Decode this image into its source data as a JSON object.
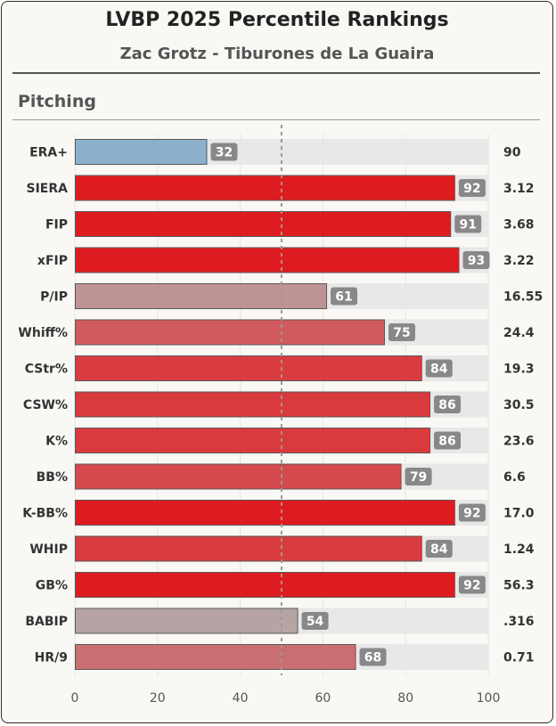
{
  "header": {
    "title": "LVBP 2025 Percentile Rankings",
    "subtitle": "Zac Grotz - Tiburones de La Guaira",
    "section": "Pitching"
  },
  "chart_data": {
    "type": "bar",
    "orientation": "horizontal",
    "title": "LVBP 2025 Percentile Rankings",
    "subtitle": "Zac Grotz - Tiburones de La Guaira",
    "section": "Pitching",
    "categories": [
      "ERA+",
      "SIERA",
      "FIP",
      "xFIP",
      "P/IP",
      "Whiff%",
      "CStr%",
      "CSW%",
      "K%",
      "BB%",
      "K-BB%",
      "WHIP",
      "GB%",
      "BABIP",
      "HR/9"
    ],
    "values": [
      32,
      92,
      91,
      93,
      61,
      75,
      84,
      86,
      86,
      79,
      92,
      84,
      92,
      54,
      68
    ],
    "stat_values": [
      "90",
      "3.12",
      "3.68",
      "3.22",
      "16.55",
      "24.4",
      "19.3",
      "30.5",
      "23.6",
      "6.6",
      "17.0",
      "1.24",
      "56.3",
      ".316",
      "0.71"
    ],
    "bar_colors": [
      "#8cb0cc",
      "#de1c1f",
      "#de1c1f",
      "#de1c1f",
      "#bd9396",
      "#d05a5d",
      "#d93c3f",
      "#d93a3d",
      "#d93a3d",
      "#d44a4d",
      "#de1c1f",
      "#d93c3f",
      "#de1c1f",
      "#b6a4a4",
      "#c96e71"
    ],
    "xlim": [
      0,
      100
    ],
    "xticks": [
      0,
      20,
      40,
      60,
      80,
      100
    ],
    "reference_line": 50,
    "xlabel": "",
    "ylabel": ""
  },
  "colors": {
    "track": "#e8e8e8",
    "badge": "#888888",
    "refline": "#999999"
  }
}
